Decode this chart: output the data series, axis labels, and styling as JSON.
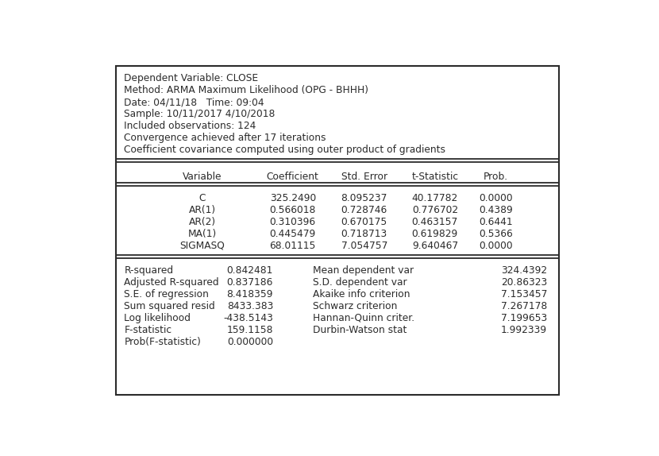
{
  "header_lines": [
    "Dependent Variable: CLOSE",
    "Method: ARMA Maximum Likelihood (OPG - BHHH)",
    "Date: 04/11/18   Time: 09:04",
    "Sample: 10/11/2017 4/10/2018",
    "Included observations: 124",
    "Convergence achieved after 17 iterations",
    "Coefficient covariance computed using outer product of gradients"
  ],
  "col_headers": [
    "Variable",
    "Coefficient",
    "Std. Error",
    "t-Statistic",
    "Prob."
  ],
  "rows": [
    [
      "C",
      "325.2490",
      "8.095237",
      "40.17782",
      "0.0000"
    ],
    [
      "AR(1)",
      "0.566018",
      "0.728746",
      "0.776702",
      "0.4389"
    ],
    [
      "AR(2)",
      "0.310396",
      "0.670175",
      "0.463157",
      "0.6441"
    ],
    [
      "MA(1)",
      "0.445479",
      "0.718713",
      "0.619829",
      "0.5366"
    ],
    [
      "SIGMASQ",
      "68.01115",
      "7.054757",
      "9.640467",
      "0.0000"
    ]
  ],
  "stats_left": [
    [
      "R-squared",
      "0.842481"
    ],
    [
      "Adjusted R-squared",
      "0.837186"
    ],
    [
      "S.E. of regression",
      "8.418359"
    ],
    [
      "Sum squared resid",
      "8433.383"
    ],
    [
      "Log likelihood",
      "-438.5143"
    ],
    [
      "F-statistic",
      "159.1158"
    ],
    [
      "Prob(F-statistic)",
      "0.000000"
    ]
  ],
  "stats_right": [
    [
      "Mean dependent var",
      "324.4392"
    ],
    [
      "S.D. dependent var",
      "20.86323"
    ],
    [
      "Akaike info criterion",
      "7.153457"
    ],
    [
      "Schwarz criterion",
      "7.267178"
    ],
    [
      "Hannan-Quinn criter.",
      "7.199653"
    ],
    [
      "Durbin-Watson stat",
      "1.992339"
    ]
  ],
  "bg_color": "#ffffff",
  "text_color": "#2b2b2b",
  "border_color": "#2b2b2b",
  "font_size": 8.8,
  "font_family": "DejaVu Sans"
}
